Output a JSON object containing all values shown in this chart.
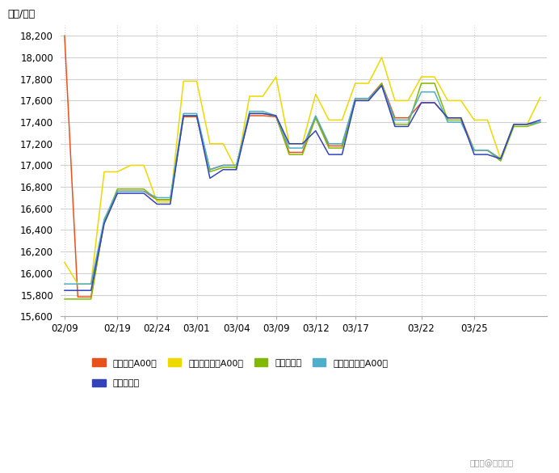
{
  "ylabel": "（元/吨）",
  "ylim": [
    15600,
    18300
  ],
  "yticks": [
    15600,
    15800,
    16000,
    16200,
    16400,
    16600,
    16800,
    17000,
    17200,
    17400,
    17600,
    17800,
    18000,
    18200
  ],
  "series_order": [
    "长江有色A00铝",
    "南海有色佛山A00铝",
    "上海现货铝",
    "广东南储华南A00铝",
    "上海期货铝"
  ],
  "series": {
    "长江有色A00铝": {
      "color": "#E8521A",
      "data_x": [
        0,
        1,
        2,
        3,
        4,
        5,
        6,
        7,
        8,
        9,
        10,
        11,
        12,
        13,
        14,
        15,
        16,
        17,
        18,
        19,
        20,
        21,
        22,
        23,
        24,
        25,
        26,
        27,
        28,
        29,
        30,
        31,
        32,
        33,
        34,
        35,
        36
      ],
      "data_y": [
        18200,
        15780,
        15780,
        16480,
        16760,
        16760,
        16760,
        16680,
        16680,
        17450,
        17450,
        16960,
        17000,
        17000,
        17460,
        17460,
        17450,
        17120,
        17120,
        17450,
        17180,
        17180,
        17620,
        17620,
        17760,
        17440,
        17440,
        17580,
        17580,
        17440,
        17440,
        17140,
        17140,
        17060,
        17380,
        17380,
        17400
      ]
    },
    "南海有色佛山A00铝": {
      "color": "#EDD800",
      "data_x": [
        0,
        1,
        2,
        3,
        4,
        5,
        6,
        7,
        8,
        9,
        10,
        11,
        12,
        13,
        14,
        15,
        16,
        17,
        18,
        19,
        20,
        21,
        22,
        23,
        24,
        25,
        26,
        27,
        28,
        29,
        30,
        31,
        32,
        33,
        34,
        35,
        36
      ],
      "data_y": [
        16100,
        15900,
        15900,
        16940,
        16940,
        17000,
        17000,
        16660,
        16660,
        17780,
        17780,
        17200,
        17200,
        16960,
        17640,
        17640,
        17820,
        17200,
        17200,
        17660,
        17420,
        17420,
        17760,
        17760,
        18000,
        17600,
        17600,
        17820,
        17820,
        17600,
        17600,
        17420,
        17420,
        17060,
        17380,
        17380,
        17630
      ]
    },
    "上海现货铝": {
      "color": "#82B800",
      "data_x": [
        0,
        1,
        2,
        3,
        4,
        5,
        6,
        7,
        8,
        9,
        10,
        11,
        12,
        13,
        14,
        15,
        16,
        17,
        18,
        19,
        20,
        21,
        22,
        23,
        24,
        25,
        26,
        27,
        28,
        29,
        30,
        31,
        32,
        33,
        34,
        35,
        36
      ],
      "data_y": [
        15760,
        15760,
        15760,
        16480,
        16780,
        16780,
        16780,
        16680,
        16680,
        17460,
        17460,
        16940,
        16980,
        16980,
        17480,
        17480,
        17460,
        17100,
        17100,
        17440,
        17160,
        17160,
        17600,
        17600,
        17760,
        17380,
        17380,
        17760,
        17760,
        17420,
        17420,
        17140,
        17140,
        17040,
        17360,
        17360,
        17400
      ]
    },
    "广东南储华南A00铝": {
      "color": "#4DAFCA",
      "data_x": [
        0,
        1,
        2,
        3,
        4,
        5,
        6,
        7,
        8,
        9,
        10,
        11,
        12,
        13,
        14,
        15,
        16,
        17,
        18,
        19,
        20,
        21,
        22,
        23,
        24,
        25,
        26,
        27,
        28,
        29,
        30,
        31,
        32,
        33,
        34,
        35,
        36
      ],
      "data_y": [
        15900,
        15900,
        15900,
        16500,
        16760,
        16760,
        16760,
        16700,
        16700,
        17480,
        17480,
        16960,
        17000,
        17000,
        17500,
        17500,
        17460,
        17160,
        17160,
        17460,
        17200,
        17200,
        17620,
        17620,
        17740,
        17420,
        17420,
        17680,
        17680,
        17400,
        17400,
        17140,
        17140,
        17060,
        17380,
        17380,
        17400
      ]
    },
    "上海期货铝": {
      "color": "#3344BB",
      "data_x": [
        0,
        1,
        2,
        3,
        4,
        5,
        6,
        7,
        8,
        9,
        10,
        11,
        12,
        13,
        14,
        15,
        16,
        17,
        18,
        19,
        20,
        21,
        22,
        23,
        24,
        25,
        26,
        27,
        28,
        29,
        30,
        31,
        32,
        33,
        34,
        35,
        36
      ],
      "data_y": [
        15840,
        15840,
        15840,
        16460,
        16740,
        16740,
        16740,
        16640,
        16640,
        17460,
        17460,
        16880,
        16960,
        16960,
        17480,
        17480,
        17460,
        17200,
        17200,
        17320,
        17100,
        17100,
        17600,
        17600,
        17740,
        17360,
        17360,
        17580,
        17580,
        17440,
        17440,
        17100,
        17100,
        17060,
        17380,
        17380,
        17420
      ]
    }
  },
  "xtick_map": {
    "0": "02/09",
    "4": "02/19",
    "7": "02/24",
    "10": "03/01",
    "13": "03/04",
    "16": "03/09",
    "19": "03/12",
    "22": "03/17",
    "27": "03/22",
    "31": "03/25"
  },
  "vgrid_positions": [
    0,
    4,
    7,
    10,
    13,
    16,
    19,
    22,
    27,
    31
  ],
  "background_color": "#ffffff",
  "grid_color": "#d0d0d0",
  "legend_order": [
    "长江有色A00铝",
    "南海有色佛山A00铝",
    "上海现货铝",
    "广东南储华南A00铝",
    "上海期货铝"
  ],
  "watermark": "搜狐号@上海铝铝"
}
